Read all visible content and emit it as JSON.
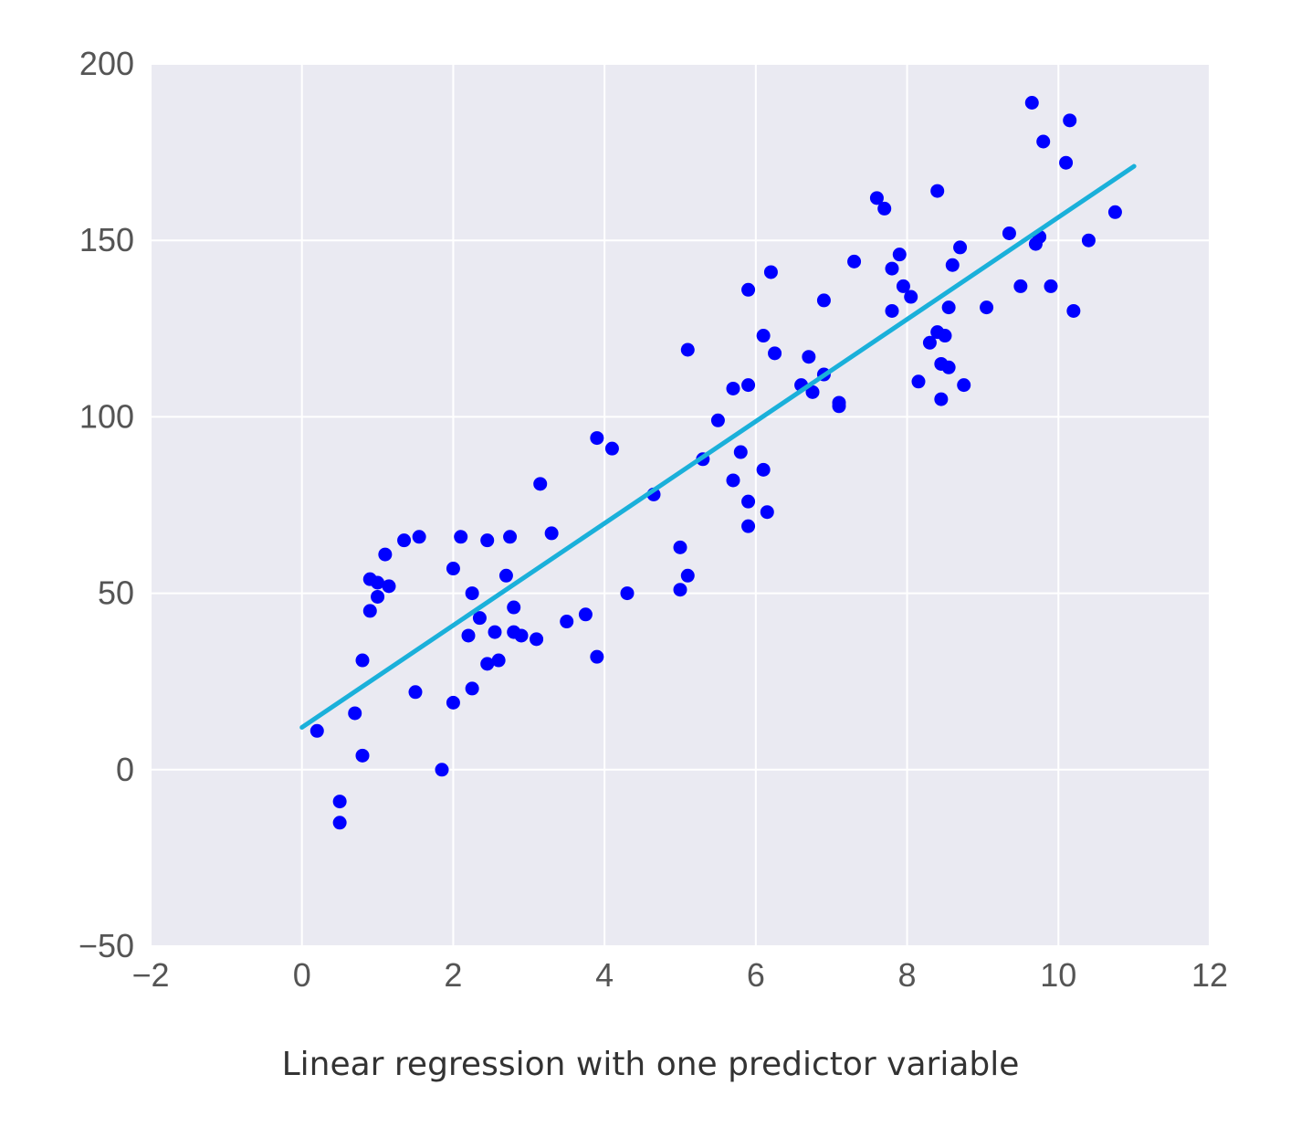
{
  "caption": "Linear regression with one predictor variable",
  "chart_data": {
    "type": "scatter",
    "title": "",
    "xlabel": "",
    "ylabel": "",
    "xlim": [
      -2,
      12
    ],
    "ylim": [
      -50,
      200
    ],
    "xticks": [
      -2,
      0,
      2,
      4,
      6,
      8,
      10,
      12
    ],
    "yticks": [
      -50,
      0,
      50,
      100,
      150,
      200
    ],
    "grid": true,
    "background_color": "#eaeaf2",
    "point_color": "#0000ff",
    "line_color": "#1ab0da",
    "points": [
      [
        0.2,
        11
      ],
      [
        0.5,
        -9
      ],
      [
        0.5,
        -15
      ],
      [
        0.7,
        16
      ],
      [
        0.8,
        4
      ],
      [
        0.8,
        31
      ],
      [
        0.9,
        54
      ],
      [
        0.9,
        45
      ],
      [
        1.0,
        53
      ],
      [
        1.0,
        49
      ],
      [
        1.1,
        61
      ],
      [
        1.15,
        52
      ],
      [
        1.35,
        65
      ],
      [
        1.5,
        22
      ],
      [
        1.55,
        66
      ],
      [
        1.85,
        0
      ],
      [
        2.0,
        57
      ],
      [
        2.0,
        19
      ],
      [
        2.1,
        66
      ],
      [
        2.2,
        38
      ],
      [
        2.25,
        50
      ],
      [
        2.25,
        23
      ],
      [
        2.35,
        43
      ],
      [
        2.45,
        65
      ],
      [
        2.45,
        30
      ],
      [
        2.55,
        39
      ],
      [
        2.6,
        31
      ],
      [
        2.7,
        55
      ],
      [
        2.75,
        66
      ],
      [
        2.8,
        46
      ],
      [
        2.8,
        39
      ],
      [
        2.9,
        38
      ],
      [
        3.1,
        37
      ],
      [
        3.15,
        81
      ],
      [
        3.3,
        67
      ],
      [
        3.5,
        42
      ],
      [
        3.75,
        44
      ],
      [
        3.9,
        94
      ],
      [
        3.9,
        32
      ],
      [
        4.1,
        91
      ],
      [
        4.3,
        50
      ],
      [
        4.65,
        78
      ],
      [
        5.0,
        63
      ],
      [
        5.0,
        51
      ],
      [
        5.1,
        119
      ],
      [
        5.1,
        55
      ],
      [
        5.3,
        88
      ],
      [
        5.5,
        99
      ],
      [
        5.7,
        108
      ],
      [
        5.7,
        82
      ],
      [
        5.8,
        90
      ],
      [
        5.9,
        136
      ],
      [
        5.9,
        109
      ],
      [
        5.9,
        76
      ],
      [
        5.9,
        69
      ],
      [
        6.1,
        123
      ],
      [
        6.1,
        85
      ],
      [
        6.15,
        73
      ],
      [
        6.2,
        141
      ],
      [
        6.25,
        118
      ],
      [
        6.6,
        109
      ],
      [
        6.7,
        117
      ],
      [
        6.75,
        107
      ],
      [
        6.9,
        133
      ],
      [
        6.9,
        112
      ],
      [
        7.1,
        104
      ],
      [
        7.1,
        103
      ],
      [
        7.3,
        144
      ],
      [
        7.6,
        162
      ],
      [
        7.7,
        159
      ],
      [
        7.8,
        142
      ],
      [
        7.8,
        130
      ],
      [
        7.9,
        146
      ],
      [
        7.95,
        137
      ],
      [
        8.05,
        134
      ],
      [
        8.15,
        110
      ],
      [
        8.3,
        121
      ],
      [
        8.4,
        124
      ],
      [
        8.4,
        164
      ],
      [
        8.45,
        115
      ],
      [
        8.45,
        105
      ],
      [
        8.5,
        123
      ],
      [
        8.55,
        114
      ],
      [
        8.55,
        131
      ],
      [
        8.6,
        143
      ],
      [
        8.7,
        148
      ],
      [
        8.75,
        109
      ],
      [
        9.05,
        131
      ],
      [
        9.35,
        152
      ],
      [
        9.5,
        137
      ],
      [
        9.65,
        189
      ],
      [
        9.7,
        149
      ],
      [
        9.75,
        151
      ],
      [
        9.8,
        178
      ],
      [
        9.9,
        137
      ],
      [
        10.1,
        172
      ],
      [
        10.15,
        184
      ],
      [
        10.2,
        130
      ],
      [
        10.4,
        150
      ],
      [
        10.75,
        158
      ]
    ],
    "fit_line": {
      "x": [
        0,
        11
      ],
      "y": [
        12,
        171
      ]
    }
  }
}
